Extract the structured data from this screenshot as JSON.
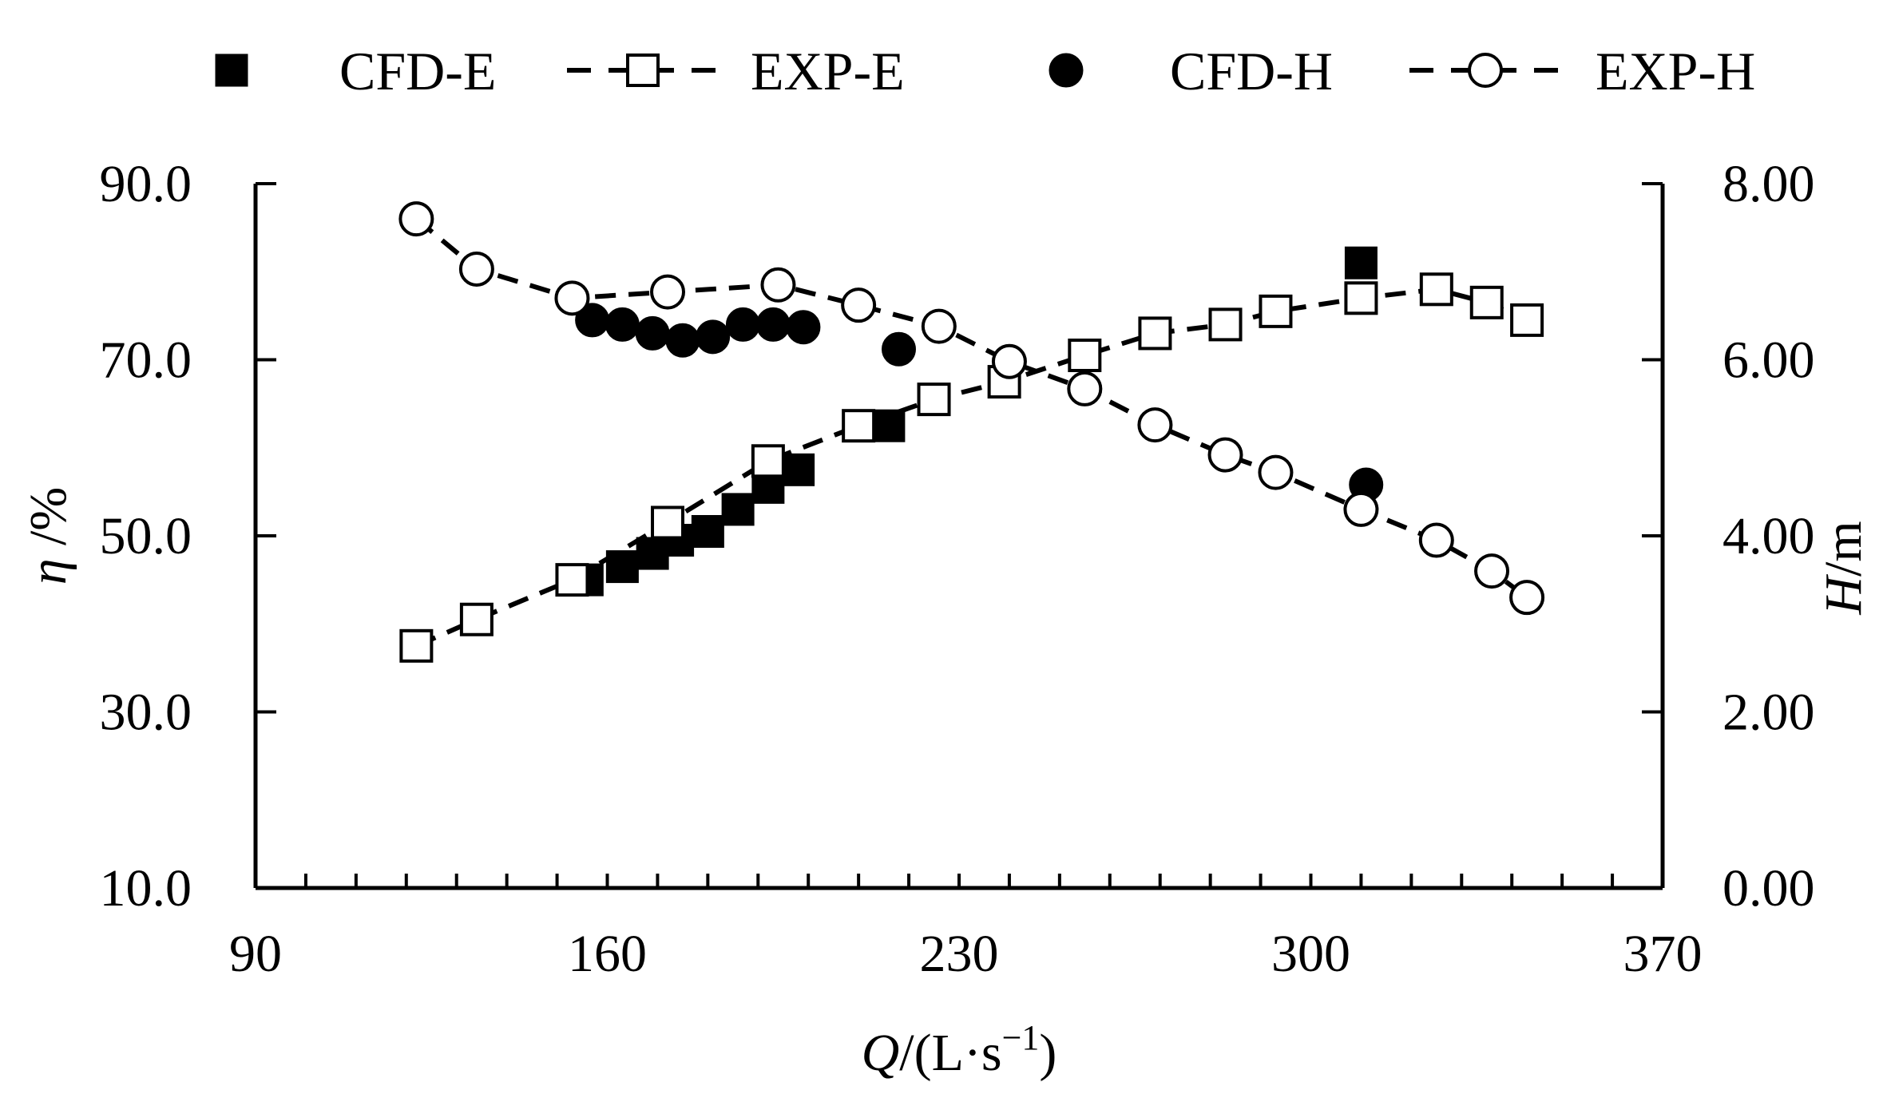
{
  "chart_data": {
    "type": "scatter",
    "title": "",
    "xlabel": {
      "var": "Q",
      "unit": "/(L·s",
      "sup": "−1",
      "close": ")"
    },
    "ylabel": {
      "var": "η",
      "unit": " /%"
    },
    "y2label": {
      "var": "H",
      "unit": "/m"
    },
    "xlim": [
      90,
      370
    ],
    "ylim": [
      10,
      90
    ],
    "y2lim": [
      0,
      8
    ],
    "x_ticks": [
      "90",
      "160",
      "230",
      "300",
      "370"
    ],
    "y_ticks": [
      "10.0",
      "30.0",
      "50.0",
      "70.0",
      "90.0"
    ],
    "y2_ticks": [
      "0.00",
      "2.00",
      "4.00",
      "6.00",
      "8.00"
    ],
    "x_tick_values": [
      90,
      160,
      230,
      300,
      370
    ],
    "y_tick_values": [
      10,
      30,
      50,
      70,
      90
    ],
    "y2_tick_values": [
      0,
      2,
      4,
      6,
      8
    ],
    "legend_position": "top",
    "series": [
      {
        "name": "CFD-E",
        "axis": "left",
        "marker": "filled-square",
        "line": "none",
        "points": [
          [
            156,
            45
          ],
          [
            163,
            46.5
          ],
          [
            169,
            48
          ],
          [
            174,
            49.5
          ],
          [
            180,
            50.5
          ],
          [
            186,
            53
          ],
          [
            192,
            55.5
          ],
          [
            198,
            57.5
          ],
          [
            216,
            62.5
          ],
          [
            310,
            81
          ]
        ]
      },
      {
        "name": "EXP-E",
        "axis": "left",
        "marker": "open-square",
        "line": "dashed",
        "points": [
          [
            122,
            37.5
          ],
          [
            134,
            40.5
          ],
          [
            153,
            45
          ],
          [
            172,
            51.5
          ],
          [
            192,
            58.5
          ],
          [
            210,
            62.5
          ],
          [
            225,
            65.5
          ],
          [
            239,
            67.5
          ],
          [
            255,
            70.5
          ],
          [
            269,
            73
          ],
          [
            283,
            74
          ],
          [
            293,
            75.5
          ],
          [
            310,
            77
          ],
          [
            325,
            78
          ],
          [
            335,
            76.5
          ],
          [
            343,
            74.5
          ]
        ]
      },
      {
        "name": "CFD-H",
        "axis": "right",
        "marker": "filled-circle",
        "line": "none",
        "points": [
          [
            157,
            6.45
          ],
          [
            163,
            6.4
          ],
          [
            169,
            6.3
          ],
          [
            175,
            6.22
          ],
          [
            181,
            6.26
          ],
          [
            187,
            6.4
          ],
          [
            193,
            6.4
          ],
          [
            199,
            6.37
          ],
          [
            218,
            6.12
          ],
          [
            311,
            4.58
          ]
        ]
      },
      {
        "name": "EXP-H",
        "axis": "right",
        "marker": "open-circle",
        "line": "dashed",
        "points": [
          [
            122,
            7.6
          ],
          [
            134,
            7.03
          ],
          [
            153,
            6.7
          ],
          [
            172,
            6.77
          ],
          [
            194,
            6.85
          ],
          [
            210,
            6.62
          ],
          [
            226,
            6.38
          ],
          [
            240,
            5.98
          ],
          [
            255,
            5.67
          ],
          [
            269,
            5.26
          ],
          [
            283,
            4.92
          ],
          [
            293,
            4.72
          ],
          [
            310,
            4.3
          ],
          [
            325,
            3.95
          ],
          [
            336,
            3.6
          ],
          [
            343,
            3.3
          ]
        ]
      }
    ]
  }
}
